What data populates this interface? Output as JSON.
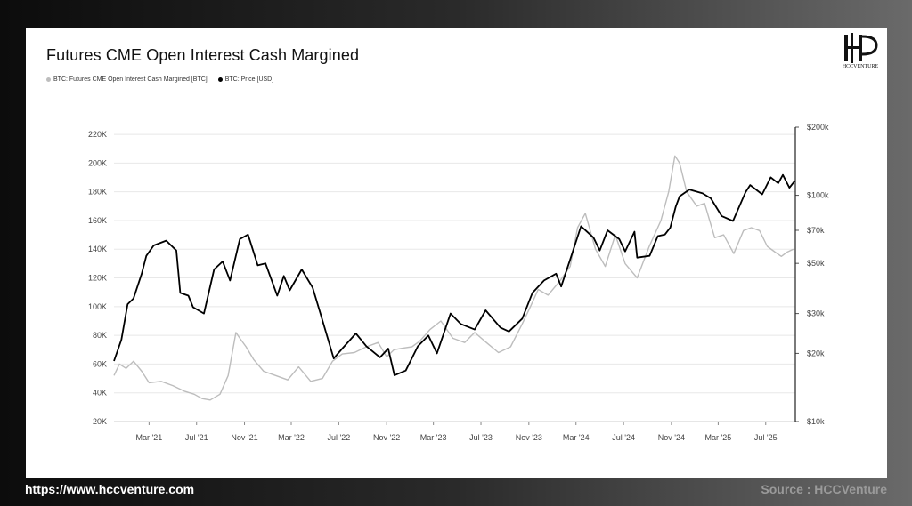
{
  "title": "Futures CME Open Interest Cash Margined",
  "logo": {
    "text": "HCCVENTURE"
  },
  "footer": {
    "url": "https://www.hccventure.com",
    "source": "Source : HCCVenture"
  },
  "colors": {
    "oi": "#bdbdbd",
    "price": "#000000",
    "grid": "#e8e8e8"
  },
  "chart_data": {
    "type": "line",
    "title": "Futures CME Open Interest Cash Margined",
    "legend": {
      "placement": "top-left"
    },
    "grid": true,
    "x_ticks": [
      "Mar '21",
      "Jul '21",
      "Nov '21",
      "Mar '22",
      "Jul '22",
      "Nov '22",
      "Mar '23",
      "Jul '23",
      "Nov '23",
      "Mar '24",
      "Jul '24",
      "Nov '24",
      "Mar '25",
      "Jul '25"
    ],
    "x_range": [
      "2020-12-01",
      "2025-09-15"
    ],
    "y_left": {
      "ticks": [
        "20K",
        "40K",
        "60K",
        "80K",
        "100K",
        "120K",
        "140K",
        "160K",
        "180K",
        "200K",
        "220K"
      ],
      "range": [
        20000,
        225000
      ]
    },
    "y_right": {
      "scale": "log",
      "ticks": [
        "$10k",
        "$20k",
        "$30k",
        "$50k",
        "$70k",
        "$100k",
        "$200k"
      ],
      "tick_values": [
        10000,
        20000,
        30000,
        50000,
        70000,
        100000,
        200000
      ],
      "range": [
        10000,
        200000
      ]
    },
    "series": [
      {
        "name": "BTC: Futures CME Open Interest Cash Margined [BTC]",
        "axis": "left",
        "x": [
          "2020-12-01",
          "2020-12-15",
          "2021-01-01",
          "2021-01-20",
          "2021-02-10",
          "2021-03-01",
          "2021-04-01",
          "2021-05-01",
          "2021-06-01",
          "2021-06-25",
          "2021-07-15",
          "2021-08-05",
          "2021-08-30",
          "2021-09-20",
          "2021-10-10",
          "2021-10-20",
          "2021-11-05",
          "2021-11-25",
          "2021-12-20",
          "2022-01-20",
          "2022-02-20",
          "2022-03-20",
          "2022-04-20",
          "2022-05-20",
          "2022-06-15",
          "2022-07-10",
          "2022-08-10",
          "2022-09-10",
          "2022-10-10",
          "2022-11-01",
          "2022-11-20",
          "2022-12-10",
          "2023-01-05",
          "2023-01-25",
          "2023-02-20",
          "2023-03-20",
          "2023-04-20",
          "2023-05-20",
          "2023-06-15",
          "2023-07-15",
          "2023-08-15",
          "2023-09-15",
          "2023-10-15",
          "2023-11-05",
          "2023-11-25",
          "2023-12-20",
          "2024-01-20",
          "2024-02-15",
          "2024-03-05",
          "2024-03-25",
          "2024-04-20",
          "2024-05-15",
          "2024-06-10",
          "2024-07-05",
          "2024-08-05",
          "2024-09-05",
          "2024-10-05",
          "2024-10-25",
          "2024-11-10",
          "2024-11-22",
          "2024-12-10",
          "2025-01-05",
          "2025-01-25",
          "2025-02-20",
          "2025-03-15",
          "2025-04-10",
          "2025-05-05",
          "2025-05-25",
          "2025-06-15",
          "2025-07-05",
          "2025-07-25",
          "2025-08-10",
          "2025-08-25",
          "2025-09-10"
        ],
        "values": [
          52000,
          60000,
          57000,
          62000,
          55000,
          47000,
          48000,
          45000,
          41000,
          39000,
          36000,
          35000,
          39000,
          52000,
          82000,
          78000,
          72000,
          63000,
          55000,
          52000,
          49000,
          58000,
          48000,
          50000,
          62000,
          67000,
          68000,
          72000,
          75000,
          65000,
          70000,
          71000,
          72000,
          76000,
          84000,
          90000,
          78000,
          75000,
          82000,
          75000,
          68000,
          72000,
          88000,
          100000,
          112000,
          108000,
          118000,
          128000,
          155000,
          165000,
          140000,
          128000,
          150000,
          130000,
          120000,
          142000,
          160000,
          180000,
          205000,
          200000,
          180000,
          170000,
          172000,
          148000,
          150000,
          137000,
          153000,
          155000,
          153000,
          142000,
          138000,
          135000,
          138000,
          140000
        ]
      },
      {
        "name": "BTC: Price [USD]",
        "axis": "right",
        "x": [
          "2020-12-01",
          "2020-12-20",
          "2021-01-05",
          "2021-01-20",
          "2021-02-10",
          "2021-02-22",
          "2021-03-13",
          "2021-04-14",
          "2021-05-10",
          "2021-05-20",
          "2021-06-10",
          "2021-06-22",
          "2021-07-20",
          "2021-08-15",
          "2021-09-06",
          "2021-09-25",
          "2021-10-20",
          "2021-11-10",
          "2021-12-05",
          "2021-12-25",
          "2022-01-24",
          "2022-02-10",
          "2022-02-25",
          "2022-03-28",
          "2022-04-25",
          "2022-05-15",
          "2022-06-18",
          "2022-07-10",
          "2022-08-14",
          "2022-09-10",
          "2022-10-15",
          "2022-11-05",
          "2022-11-21",
          "2022-12-20",
          "2023-01-20",
          "2023-02-16",
          "2023-03-10",
          "2023-04-14",
          "2023-05-10",
          "2023-06-15",
          "2023-07-13",
          "2023-08-20",
          "2023-09-11",
          "2023-10-15",
          "2023-11-10",
          "2023-12-10",
          "2024-01-10",
          "2024-01-23",
          "2024-02-15",
          "2024-03-14",
          "2024-04-15",
          "2024-05-01",
          "2024-05-21",
          "2024-06-20",
          "2024-07-05",
          "2024-07-29",
          "2024-08-05",
          "2024-09-06",
          "2024-09-27",
          "2024-10-15",
          "2024-10-29",
          "2024-11-12",
          "2024-11-22",
          "2024-12-17",
          "2025-01-20",
          "2025-02-10",
          "2025-03-10",
          "2025-04-08",
          "2025-05-10",
          "2025-05-22",
          "2025-06-22",
          "2025-07-14",
          "2025-08-02",
          "2025-08-14",
          "2025-08-31",
          "2025-09-14"
        ],
        "values": [
          18500,
          23000,
          33000,
          35000,
          45000,
          54000,
          60000,
          63000,
          57000,
          37000,
          36000,
          32000,
          30000,
          47000,
          51000,
          42000,
          64000,
          67000,
          49000,
          50000,
          36000,
          44000,
          38000,
          47000,
          39000,
          30000,
          19000,
          21000,
          24500,
          21500,
          19200,
          21000,
          16000,
          16800,
          21500,
          24000,
          20000,
          30000,
          27000,
          25500,
          31000,
          26000,
          25000,
          28500,
          37000,
          42000,
          45000,
          39500,
          52000,
          73000,
          65000,
          57000,
          70000,
          64000,
          56500,
          69000,
          53000,
          54000,
          66000,
          67000,
          72000,
          89000,
          99000,
          106000,
          102000,
          97000,
          81000,
          77000,
          103000,
          111000,
          101000,
          120000,
          113000,
          123000,
          108000,
          116000
        ]
      }
    ]
  }
}
